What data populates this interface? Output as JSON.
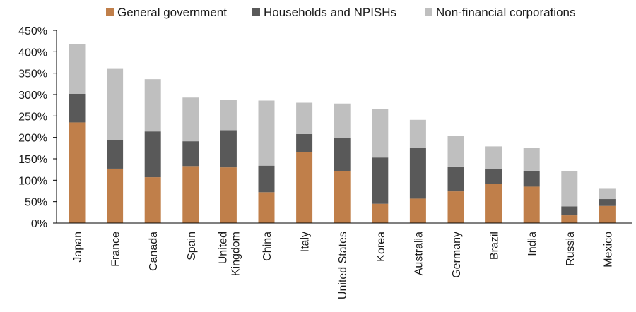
{
  "chart_data": {
    "type": "bar",
    "stacked": true,
    "title": "",
    "xlabel": "",
    "ylabel": "",
    "ylim": [
      0,
      450
    ],
    "y_tick_step": 50,
    "y_tick_suffix": "%",
    "grid": false,
    "legend_position": "top",
    "categories": [
      "Japan",
      "France",
      "Canada",
      "Spain",
      "United Kingdom",
      "China",
      "Italy",
      "United States",
      "Korea",
      "Australia",
      "Germany",
      "Brazil",
      "India",
      "Russia",
      "Mexico"
    ],
    "category_lines": [
      [
        "Japan"
      ],
      [
        "France"
      ],
      [
        "Canada"
      ],
      [
        "Spain"
      ],
      [
        "United",
        "Kingdom"
      ],
      [
        "China"
      ],
      [
        "Italy"
      ],
      [
        "United States"
      ],
      [
        "Korea"
      ],
      [
        "Australia"
      ],
      [
        "Germany"
      ],
      [
        "Brazil"
      ],
      [
        "India"
      ],
      [
        "Russia"
      ],
      [
        "Mexico"
      ]
    ],
    "series": [
      {
        "name": "General government",
        "color": "#c07f4a",
        "values": [
          235,
          127,
          107,
          133,
          130,
          72,
          165,
          122,
          45,
          57,
          74,
          92,
          85,
          18,
          40
        ]
      },
      {
        "name": "Households and NPISHs",
        "color": "#595959",
        "values": [
          67,
          66,
          107,
          58,
          87,
          62,
          43,
          77,
          108,
          119,
          58,
          34,
          37,
          21,
          16
        ]
      },
      {
        "name": "Non-financial corporations",
        "color": "#bfbfbf",
        "values": [
          116,
          167,
          122,
          102,
          71,
          152,
          73,
          80,
          113,
          65,
          72,
          53,
          53,
          83,
          24
        ]
      }
    ]
  }
}
